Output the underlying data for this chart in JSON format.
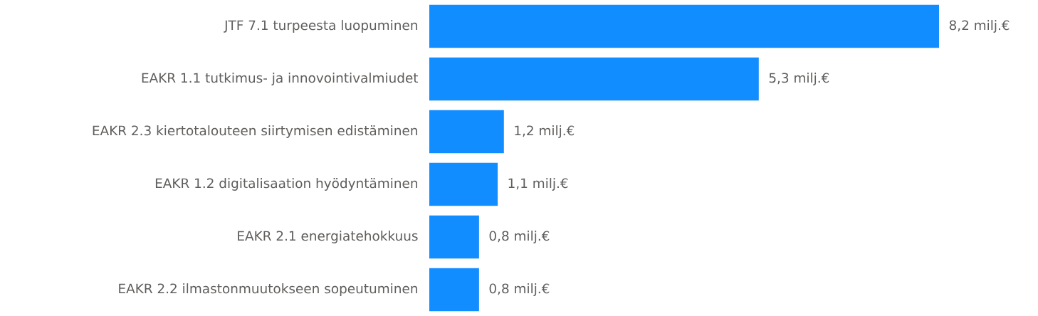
{
  "chart_data": {
    "type": "bar",
    "orientation": "horizontal",
    "categories": [
      "JTF 7.1 turpeesta luopuminen",
      "EAKR 1.1 tutkimus- ja innovointivalmiudet",
      "EAKR 2.3 kiertotalouteen siirtymisen edistäminen",
      "EAKR 1.2 digitalisaation hyödyntäminen",
      "EAKR 2.1 energiatehokkuus",
      "EAKR 2.2 ilmastonmuutokseen sopeutuminen"
    ],
    "values": [
      8.2,
      5.3,
      1.2,
      1.1,
      0.8,
      0.8
    ],
    "value_labels": [
      "8,2 milj.€",
      "5,3 milj.€",
      "1,2 milj.€",
      "1,1 milj.€",
      "0,8 milj.€",
      "0,8 milj.€"
    ],
    "color": "#118dff"
  }
}
